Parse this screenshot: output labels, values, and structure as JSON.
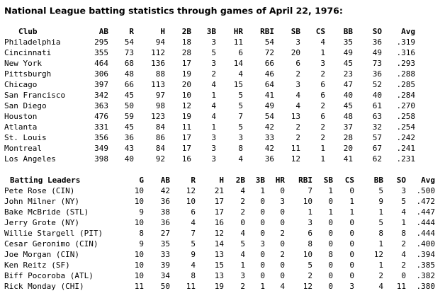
{
  "title": "National League batting statistics through games of April 22, 1976:",
  "club_table": {
    "headers": [
      "Club",
      "AB",
      "R",
      "H",
      "2B",
      "3B",
      "HR",
      "RBI",
      "SB",
      "CS",
      "BB",
      "SO",
      "Avg"
    ],
    "rows": [
      [
        "Philadelphia",
        "295",
        "54",
        "94",
        "18",
        "3",
        "11",
        "54",
        "3",
        "4",
        "35",
        "36",
        ".319"
      ],
      [
        "Cincinnati",
        "355",
        "73",
        "112",
        "28",
        "5",
        "6",
        "72",
        "20",
        "1",
        "49",
        "49",
        ".316"
      ],
      [
        "New York",
        "464",
        "68",
        "136",
        "17",
        "3",
        "14",
        "66",
        "6",
        "3",
        "45",
        "73",
        ".293"
      ],
      [
        "Pittsburgh",
        "306",
        "48",
        "88",
        "19",
        "2",
        "4",
        "46",
        "2",
        "2",
        "23",
        "36",
        ".288"
      ],
      [
        "Chicago",
        "397",
        "66",
        "113",
        "20",
        "4",
        "15",
        "64",
        "3",
        "6",
        "47",
        "52",
        ".285"
      ],
      [
        "San Francisco",
        "342",
        "45",
        "97",
        "10",
        "1",
        "5",
        "41",
        "4",
        "6",
        "40",
        "40",
        ".284"
      ],
      [
        "San Diego",
        "363",
        "50",
        "98",
        "12",
        "4",
        "5",
        "49",
        "4",
        "2",
        "45",
        "61",
        ".270"
      ],
      [
        "Houston",
        "476",
        "59",
        "123",
        "19",
        "4",
        "7",
        "54",
        "13",
        "6",
        "48",
        "63",
        ".258"
      ],
      [
        "Atlanta",
        "331",
        "45",
        "84",
        "11",
        "1",
        "5",
        "42",
        "2",
        "2",
        "37",
        "32",
        ".254"
      ],
      [
        "St. Louis",
        "356",
        "36",
        "86",
        "17",
        "3",
        "3",
        "33",
        "2",
        "2",
        "28",
        "57",
        ".242"
      ],
      [
        "Montreal",
        "349",
        "43",
        "84",
        "17",
        "3",
        "8",
        "42",
        "11",
        "1",
        "20",
        "67",
        ".241"
      ],
      [
        "Los Angeles",
        "398",
        "40",
        "92",
        "16",
        "3",
        "4",
        "36",
        "12",
        "1",
        "41",
        "62",
        ".231"
      ]
    ]
  },
  "leaders_table": {
    "headers": [
      "Batting Leaders",
      "G",
      "AB",
      "R",
      "H",
      "2B",
      "3B",
      "HR",
      "RBI",
      "SB",
      "CS",
      "BB",
      "SO",
      "Avg"
    ],
    "rows": [
      [
        "Pete Rose (CIN)",
        "10",
        "42",
        "12",
        "21",
        "4",
        "1",
        "0",
        "7",
        "1",
        "0",
        "5",
        "3",
        ".500"
      ],
      [
        "John Milner (NY)",
        "10",
        "36",
        "10",
        "17",
        "2",
        "0",
        "3",
        "10",
        "0",
        "1",
        "9",
        "5",
        ".472"
      ],
      [
        "Bake McBride (STL)",
        "9",
        "38",
        "6",
        "17",
        "2",
        "0",
        "0",
        "1",
        "1",
        "1",
        "1",
        "4",
        ".447"
      ],
      [
        "Jerry Grote (NY)",
        "10",
        "36",
        "4",
        "16",
        "0",
        "0",
        "0",
        "3",
        "0",
        "0",
        "5",
        "1",
        ".444"
      ],
      [
        "Willie Stargell (PIT)",
        "8",
        "27",
        "7",
        "12",
        "4",
        "0",
        "2",
        "6",
        "0",
        "0",
        "8",
        "8",
        ".444"
      ],
      [
        "Cesar Geronimo (CIN)",
        "9",
        "35",
        "5",
        "14",
        "5",
        "3",
        "0",
        "8",
        "0",
        "0",
        "1",
        "2",
        ".400"
      ],
      [
        "Joe Morgan (CIN)",
        "10",
        "33",
        "9",
        "13",
        "4",
        "0",
        "2",
        "10",
        "8",
        "0",
        "12",
        "4",
        ".394"
      ],
      [
        "Ken Reitz (SF)",
        "10",
        "39",
        "4",
        "15",
        "1",
        "0",
        "0",
        "5",
        "0",
        "0",
        "1",
        "2",
        ".385"
      ],
      [
        "Biff Pocoroba (ATL)",
        "10",
        "34",
        "8",
        "13",
        "3",
        "0",
        "0",
        "2",
        "0",
        "0",
        "2",
        "0",
        ".382"
      ],
      [
        "Rick Monday (CHI)",
        "11",
        "50",
        "11",
        "19",
        "2",
        "1",
        "4",
        "12",
        "0",
        "3",
        "4",
        "11",
        ".380"
      ]
    ]
  }
}
